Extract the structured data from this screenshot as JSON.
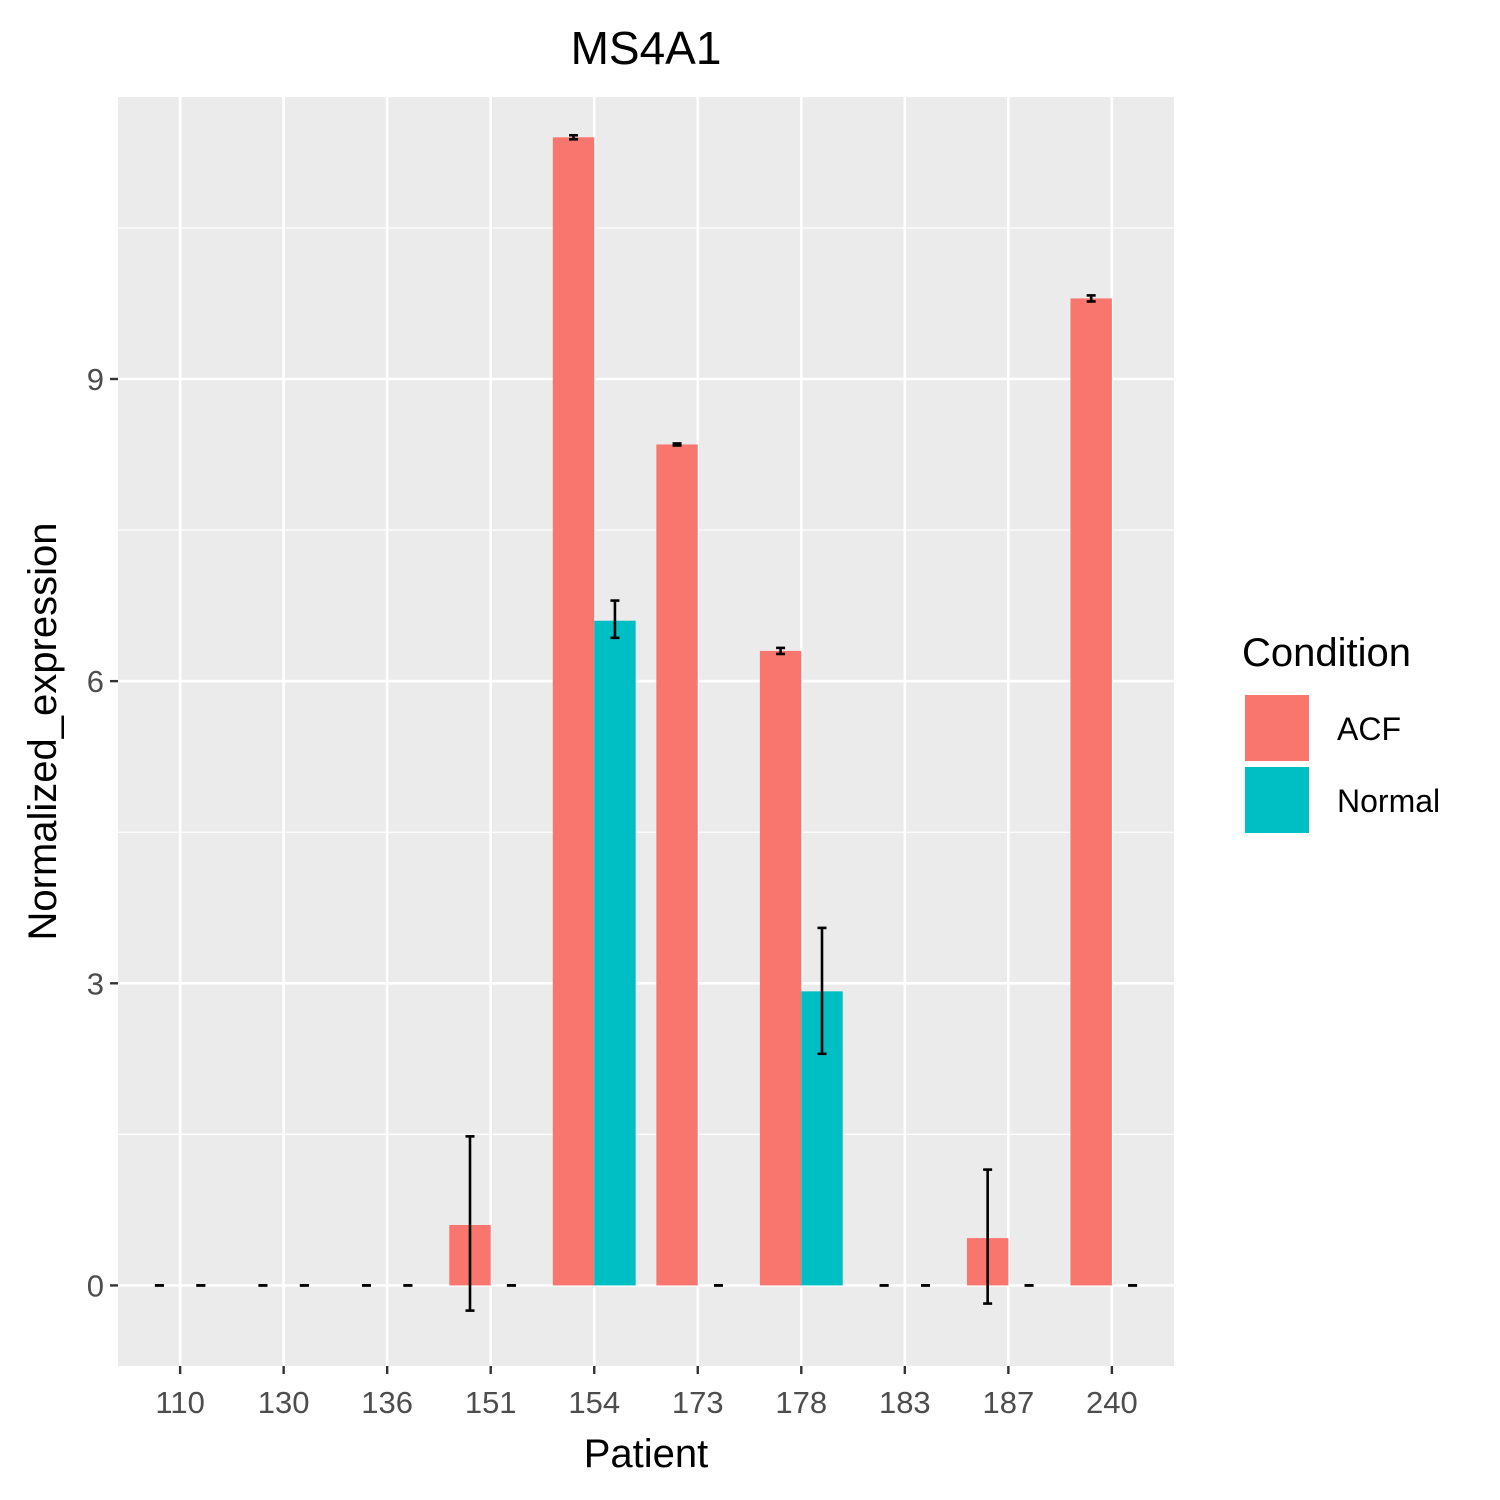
{
  "chart_data": {
    "type": "bar",
    "title": "MS4A1",
    "xlabel": "Patient",
    "ylabel": "Normalized_expression",
    "categories": [
      "110",
      "130",
      "136",
      "151",
      "154",
      "173",
      "178",
      "183",
      "187",
      "240"
    ],
    "ylim": [
      -0.8,
      11.8
    ],
    "yticks": [
      0,
      3,
      6,
      9
    ],
    "grid": true,
    "legend": {
      "title": "Condition",
      "position": "right"
    },
    "series": [
      {
        "name": "ACF",
        "color": "#F8766D",
        "values": [
          0,
          0,
          0,
          0.6,
          11.4,
          8.35,
          6.3,
          0,
          0.47,
          9.8
        ],
        "error_low": [
          0,
          0,
          0,
          -0.25,
          11.38,
          8.34,
          6.27,
          0,
          -0.18,
          9.77
        ],
        "error_high": [
          0,
          0,
          0,
          1.48,
          11.42,
          8.36,
          6.33,
          0,
          1.15,
          9.83
        ]
      },
      {
        "name": "Normal",
        "color": "#00BFC4",
        "values": [
          0,
          0,
          0,
          0,
          6.6,
          0,
          2.92,
          0,
          0,
          0
        ],
        "error_low": [
          0,
          0,
          0,
          0,
          6.43,
          0,
          2.3,
          0,
          0,
          0
        ],
        "error_high": [
          0,
          0,
          0,
          0,
          6.8,
          0,
          3.55,
          0,
          0,
          0
        ]
      }
    ]
  }
}
